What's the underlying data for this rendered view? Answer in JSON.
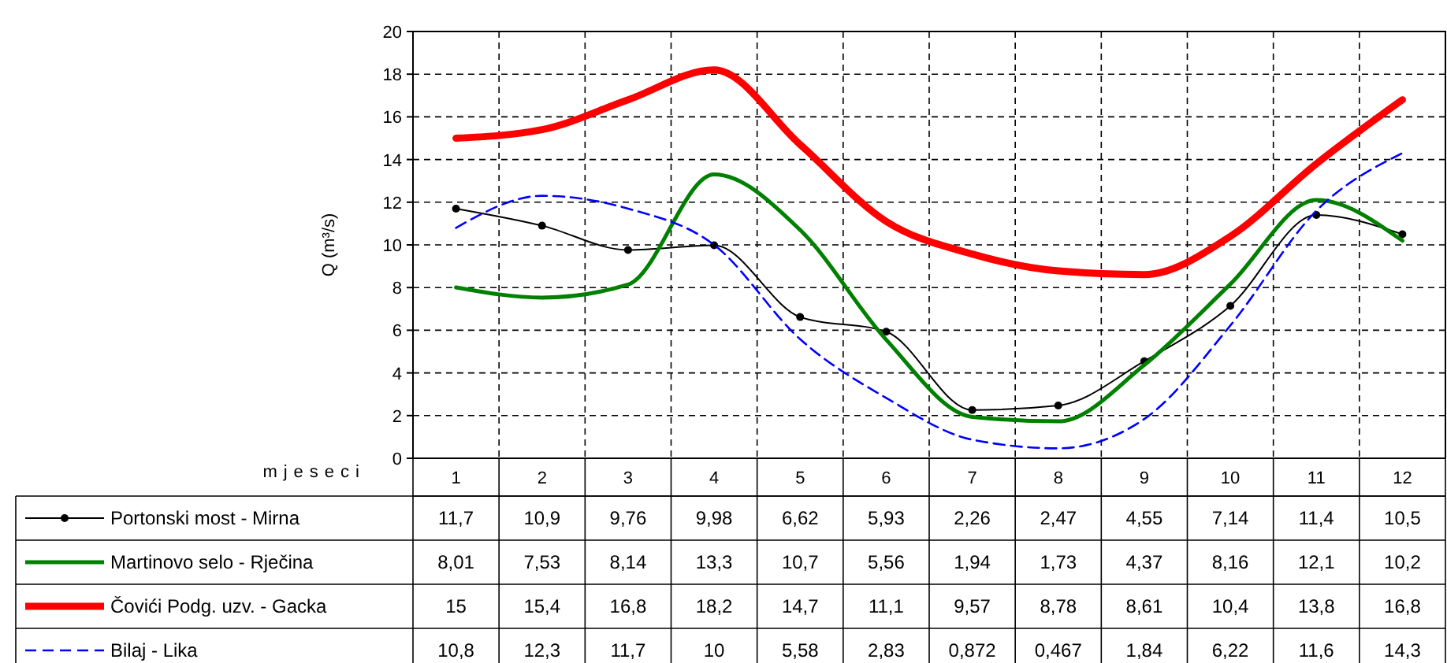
{
  "chart_data": {
    "type": "line",
    "ylabel": "Q (m³/s)",
    "xlabel": "mjeseci",
    "categories": [
      "1",
      "2",
      "3",
      "4",
      "5",
      "6",
      "7",
      "8",
      "9",
      "10",
      "11",
      "12"
    ],
    "ylim": [
      0,
      20
    ],
    "yticks": [
      0,
      2,
      4,
      6,
      8,
      10,
      12,
      14,
      16,
      18,
      20
    ],
    "grid": true,
    "legend": "bottom",
    "series": [
      {
        "name": "Portonski most - Mirna",
        "color": "#000000",
        "marker": "circle",
        "line_style": "solid",
        "values": [
          11.7,
          10.9,
          9.76,
          9.98,
          6.62,
          5.93,
          2.26,
          2.47,
          4.55,
          7.14,
          11.4,
          10.5
        ],
        "value_labels": [
          "11,7",
          "10,9",
          "9,76",
          "9,98",
          "6,62",
          "5,93",
          "2,26",
          "2,47",
          "4,55",
          "7,14",
          "11,4",
          "10,5"
        ]
      },
      {
        "name": "Martinovo selo - Rječina",
        "color": "#008000",
        "marker": "none",
        "line_style": "solid",
        "values": [
          8.01,
          7.53,
          8.14,
          13.3,
          10.7,
          5.56,
          1.94,
          1.73,
          4.37,
          8.16,
          12.1,
          10.2
        ],
        "value_labels": [
          "8,01",
          "7,53",
          "8,14",
          "13,3",
          "10,7",
          "5,56",
          "1,94",
          "1,73",
          "4,37",
          "8,16",
          "12,1",
          "10,2"
        ]
      },
      {
        "name": "Čovići Podg. uzv. - Gacka",
        "color": "#ff0000",
        "marker": "none",
        "line_style": "solid",
        "values": [
          15,
          15.4,
          16.8,
          18.2,
          14.7,
          11.1,
          9.57,
          8.78,
          8.61,
          10.4,
          13.8,
          16.8
        ],
        "value_labels": [
          "15",
          "15,4",
          "16,8",
          "18,2",
          "14,7",
          "11,1",
          "9,57",
          "8,78",
          "8,61",
          "10,4",
          "13,8",
          "16,8"
        ]
      },
      {
        "name": "Bilaj - Lika",
        "color": "#0000ff",
        "marker": "none",
        "line_style": "dashed",
        "values": [
          10.8,
          12.3,
          11.7,
          10,
          5.58,
          2.83,
          0.872,
          0.467,
          1.84,
          6.22,
          11.6,
          14.3
        ],
        "value_labels": [
          "10,8",
          "12,3",
          "11,7",
          "10",
          "5,58",
          "2,83",
          "0,872",
          "0,467",
          "1,84",
          "6,22",
          "11,6",
          "14,3"
        ]
      }
    ]
  }
}
